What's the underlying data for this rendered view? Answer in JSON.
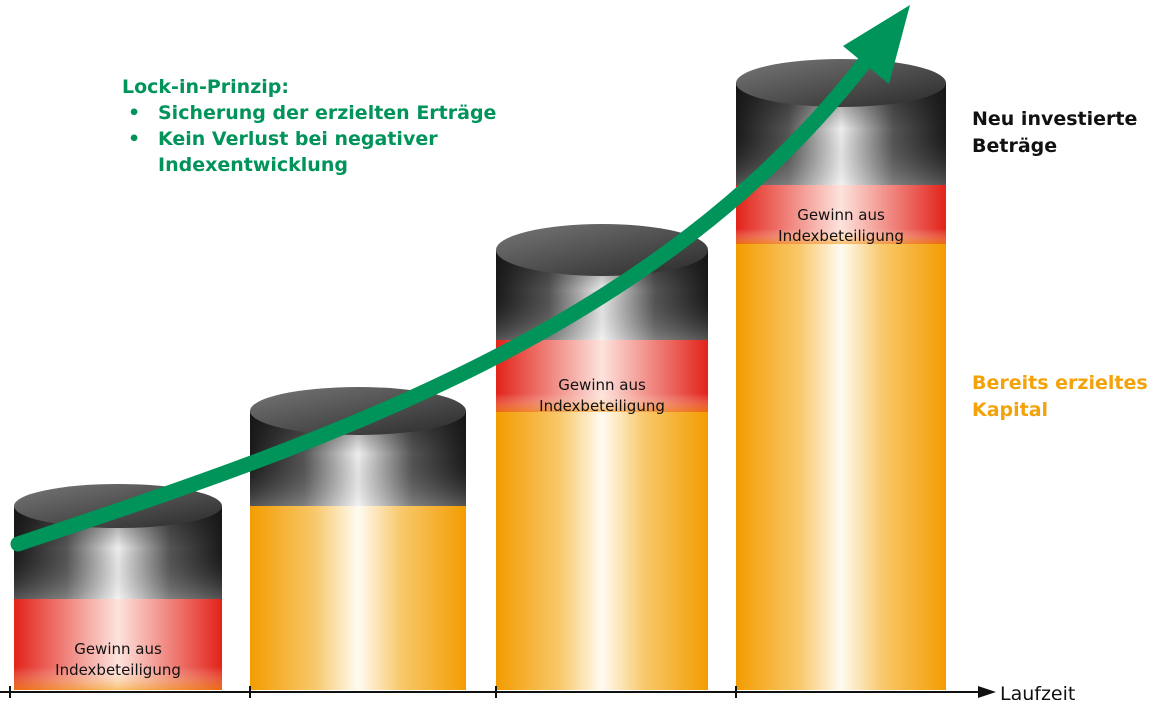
{
  "colors": {
    "green": "#00945a",
    "orange": "#f4a20a",
    "red": "#e2231a",
    "dark": "#222222",
    "black": "#111111"
  },
  "callout": {
    "title": "Lock-in-Prinzip:",
    "bullets": [
      "Sicherung der erzielten Erträge",
      "Kein Verlust bei negativer Indexentwicklung"
    ]
  },
  "legend": {
    "new_invested": "Neu investierte Beträge",
    "capital": "Bereits erzieltes Kapital"
  },
  "columns": [
    {
      "gain_label_line1": "Gewinn aus",
      "gain_label_line2": "Indexbeteiligung",
      "has_gain": true
    },
    {
      "gain_label_line1": "",
      "gain_label_line2": "",
      "has_gain": false
    },
    {
      "gain_label_line1": "Gewinn aus",
      "gain_label_line2": "Indexbeteiligung",
      "has_gain": true
    },
    {
      "gain_label_line1": "Gewinn aus",
      "gain_label_line2": "Indexbeteiligung",
      "has_gain": true
    }
  ],
  "axis": {
    "label": "Laufzeit"
  }
}
